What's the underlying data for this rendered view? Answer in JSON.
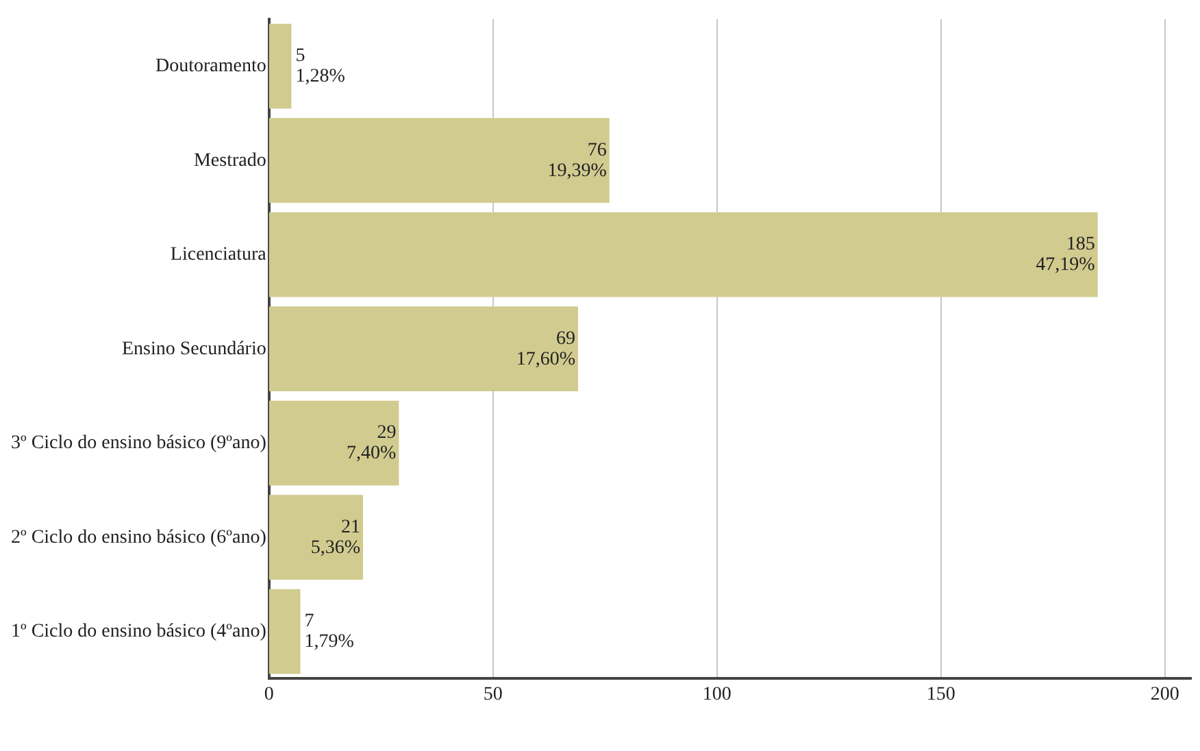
{
  "chart_data": {
    "type": "bar",
    "orientation": "horizontal",
    "categories": [
      "Doutoramento",
      "Mestrado",
      "Licenciatura",
      "Ensino Secundário",
      "3º Ciclo do ensino básico (9ºano)",
      "2º Ciclo do ensino básico (6ºano)",
      "1º Ciclo do ensino básico (4ºano)"
    ],
    "values": [
      5,
      76,
      185,
      69,
      29,
      21,
      7
    ],
    "value_labels": [
      "5\n1,28%",
      "76\n19,39%",
      "185\n47,19%",
      "69\n17,60%",
      "29\n7,40%",
      "21\n5,36%",
      "7\n1,79%"
    ],
    "color": "#d1cb8f",
    "xlim": [
      0,
      206
    ],
    "xticks": [
      0,
      50,
      100,
      150,
      200
    ],
    "grid": "x",
    "legend": false
  }
}
